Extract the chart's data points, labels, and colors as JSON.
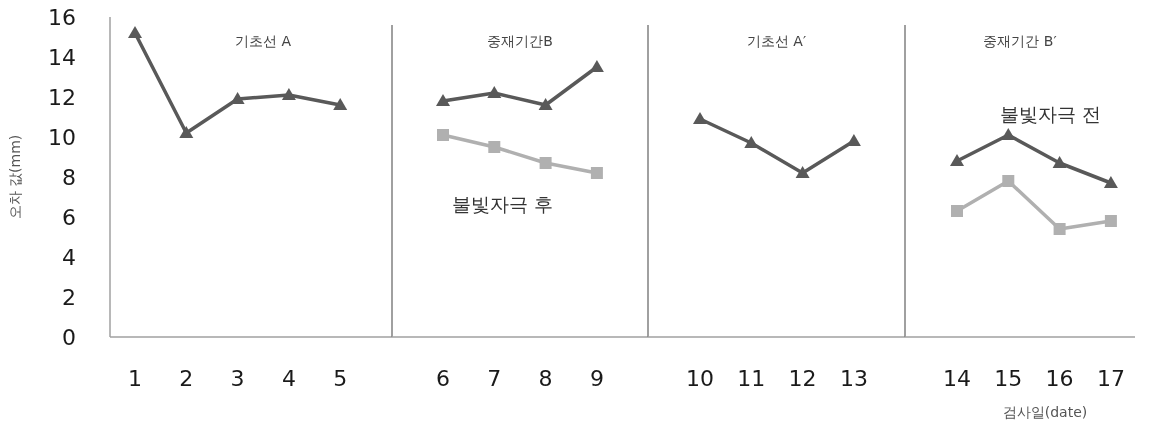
{
  "chart_data": [
    {
      "type": "line",
      "title": "기초선 A",
      "ylabel": "오차 값(mm)",
      "categories": [
        "1",
        "2",
        "3",
        "4",
        "5"
      ],
      "ylim": [
        0,
        16
      ],
      "yticks": [
        0,
        2,
        4,
        6,
        8,
        10,
        12,
        14,
        16
      ],
      "grid": false,
      "line_style": "solid",
      "series": [
        {
          "color": "#595959",
          "marker": "triangle",
          "values": [
            15.2,
            10.2,
            11.9,
            12.1,
            11.6
          ]
        }
      ]
    },
    {
      "type": "line",
      "title": "중재기간B",
      "categories": [
        "6",
        "7",
        "8",
        "9"
      ],
      "ylim": [
        0,
        16
      ],
      "tick_labels": "x",
      "grid": false,
      "line_style": "solid",
      "series": [
        {
          "color": "#595959",
          "marker": "triangle",
          "values": [
            11.8,
            12.2,
            11.6,
            13.5
          ]
        },
        {
          "name": "불빛자극 후",
          "color": "#b0b0b0",
          "marker": "square",
          "values": [
            10.1,
            9.5,
            8.7,
            8.2
          ]
        }
      ]
    },
    {
      "type": "line",
      "title": "기초선 A′",
      "categories": [
        "10",
        "11",
        "12",
        "13"
      ],
      "ylim": [
        0,
        16
      ],
      "tick_labels": "x",
      "grid": false,
      "line_style": "solid",
      "series": [
        {
          "color": "#595959",
          "marker": "triangle",
          "values": [
            10.9,
            9.7,
            8.2,
            9.8
          ]
        }
      ]
    },
    {
      "type": "line",
      "title": "중재기간 B′",
      "xlabel": "검사일(date)",
      "categories": [
        "14",
        "15",
        "16",
        "17"
      ],
      "ylim": [
        0,
        16
      ],
      "tick_labels": "x",
      "grid": false,
      "line_style": "solid",
      "series": [
        {
          "name": "불빛자극 전",
          "color": "#595959",
          "marker": "triangle",
          "values": [
            8.8,
            10.1,
            8.7,
            7.7
          ]
        },
        {
          "color": "#b0b0b0",
          "marker": "square",
          "values": [
            6.3,
            7.8,
            5.4,
            5.8
          ]
        }
      ]
    }
  ]
}
